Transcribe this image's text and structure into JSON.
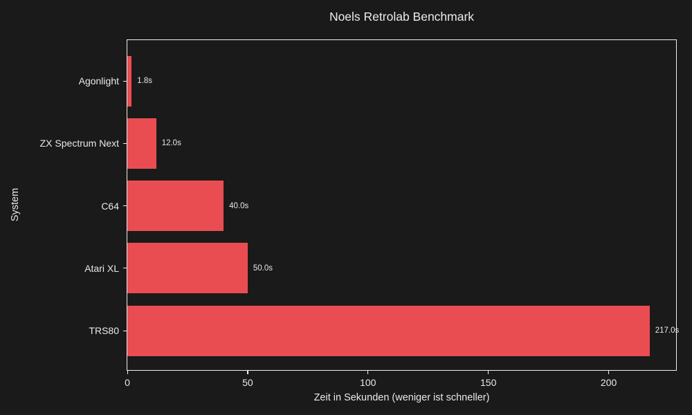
{
  "title": "Noels Retrolab Benchmark",
  "colors": {
    "background": "#1a1a1a",
    "bar": "#e94d52",
    "text": "#e9e9e9",
    "axis": "#f0f0f0"
  },
  "chart_data": {
    "type": "bar",
    "orientation": "horizontal",
    "title": "Noels Retrolab Benchmark",
    "xlabel": "Zeit in Sekunden (weniger ist schneller)",
    "ylabel": "System",
    "categories": [
      "Agonlight",
      "ZX Spectrum Next",
      "C64",
      "Atari XL",
      "TRS80"
    ],
    "values": [
      1.8,
      12.0,
      40.0,
      50.0,
      217.0
    ],
    "value_labels": [
      "1.8s",
      "12.0s",
      "40.0s",
      "50.0s",
      "217.0s"
    ],
    "xlim": [
      0,
      228
    ],
    "xticks": [
      0,
      50,
      100,
      150,
      200
    ],
    "xtick_labels": [
      "0",
      "50",
      "100",
      "150",
      "200"
    ],
    "grid": false,
    "legend": null,
    "bar_color": "#e94d52"
  }
}
